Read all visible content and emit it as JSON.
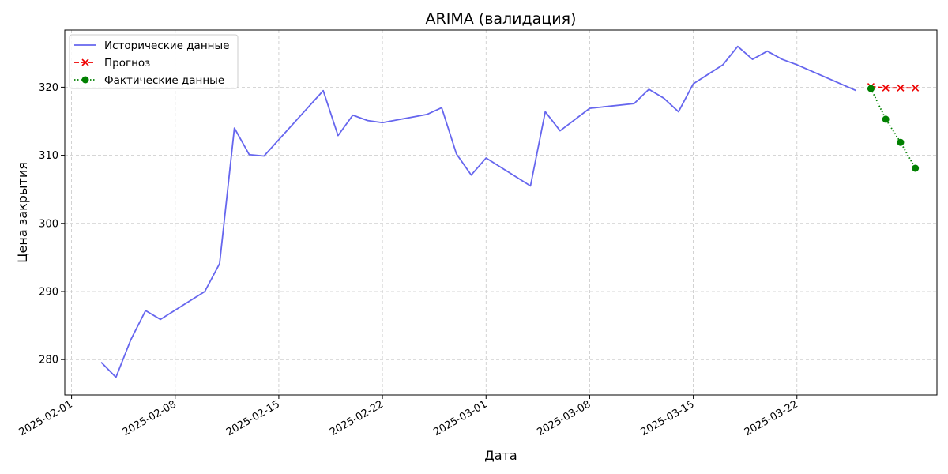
{
  "chart_data": {
    "type": "line",
    "title": "ARIMA (валидация)",
    "xlabel": "Дата",
    "ylabel": "Цена закрытия",
    "x_axis_type": "date",
    "xlim": [
      "2025-01-31T13:00",
      "2025-03-31T11:00"
    ],
    "ylim": [
      274.8,
      328.4
    ],
    "x_ticks": [
      "2025-02-01",
      "2025-02-08",
      "2025-02-15",
      "2025-02-22",
      "2025-03-01",
      "2025-03-08",
      "2025-03-15",
      "2025-03-22"
    ],
    "y_ticks": [
      280,
      290,
      300,
      310,
      320
    ],
    "grid": true,
    "legend": "upper-left",
    "series": [
      {
        "name": "Исторические данные",
        "color": "#6666ee",
        "style": "solid",
        "marker": "none",
        "points": [
          [
            "2025-02-03",
            279.6
          ],
          [
            "2025-02-04",
            277.4
          ],
          [
            "2025-02-05",
            282.9
          ],
          [
            "2025-02-06",
            287.2
          ],
          [
            "2025-02-07",
            285.9
          ],
          [
            "2025-02-10",
            290.0
          ],
          [
            "2025-02-11",
            294.1
          ],
          [
            "2025-02-12",
            314.0
          ],
          [
            "2025-02-13",
            310.1
          ],
          [
            "2025-02-14",
            309.9
          ],
          [
            "2025-02-18",
            319.5
          ],
          [
            "2025-02-19",
            312.9
          ],
          [
            "2025-02-20",
            315.9
          ],
          [
            "2025-02-21",
            315.1
          ],
          [
            "2025-02-22",
            314.8
          ],
          [
            "2025-02-25",
            316.0
          ],
          [
            "2025-02-26",
            317.0
          ],
          [
            "2025-02-27",
            310.2
          ],
          [
            "2025-02-28",
            307.1
          ],
          [
            "2025-03-01",
            309.6
          ],
          [
            "2025-03-04",
            305.5
          ],
          [
            "2025-03-05",
            316.4
          ],
          [
            "2025-03-06",
            313.6
          ],
          [
            "2025-03-08",
            316.9
          ],
          [
            "2025-03-11",
            317.6
          ],
          [
            "2025-03-12",
            319.7
          ],
          [
            "2025-03-13",
            318.4
          ],
          [
            "2025-03-14",
            316.4
          ],
          [
            "2025-03-15",
            320.5
          ],
          [
            "2025-03-17",
            323.3
          ],
          [
            "2025-03-18",
            326.0
          ],
          [
            "2025-03-19",
            324.1
          ],
          [
            "2025-03-20",
            325.3
          ],
          [
            "2025-03-21",
            324.1
          ],
          [
            "2025-03-22",
            323.3
          ],
          [
            "2025-03-26",
            319.5
          ]
        ]
      },
      {
        "name": "Прогноз",
        "color": "#ee0000",
        "style": "dashed",
        "marker": "x",
        "points": [
          [
            "2025-03-27",
            320.1
          ],
          [
            "2025-03-28",
            319.9
          ],
          [
            "2025-03-29",
            319.9
          ],
          [
            "2025-03-30",
            319.9
          ]
        ]
      },
      {
        "name": "Фактические данные",
        "color": "#008000",
        "style": "dotted",
        "marker": "circle",
        "points": [
          [
            "2025-03-27",
            319.8
          ],
          [
            "2025-03-28",
            315.3
          ],
          [
            "2025-03-29",
            311.9
          ],
          [
            "2025-03-30",
            308.1
          ]
        ]
      }
    ]
  }
}
